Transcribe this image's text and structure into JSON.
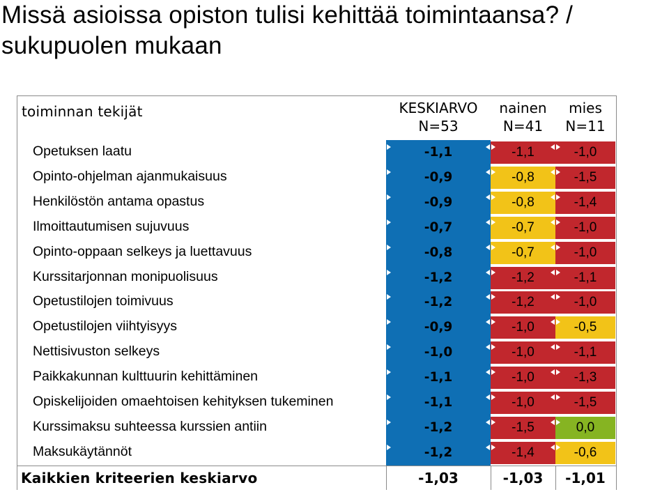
{
  "title": "Missä asioissa opiston tulisi kehittää toimintaansa? / sukupuolen mukaan",
  "header": {
    "label": "toiminnan tekijät",
    "col_k_line1": "KESKIARVO",
    "col_k_line2": "N=53",
    "col_n_line1": "nainen",
    "col_n_line2": "N=41",
    "col_m_line1": "mies",
    "col_m_line2": "N=11"
  },
  "colors": {
    "blue": "#0f6fb4",
    "red": "#c1272d",
    "yellow": "#f2c318",
    "green": "#86b422"
  },
  "rows": [
    {
      "label": "Opetuksen laatu",
      "k": "-1,1",
      "n": "-1,1",
      "m": "-1,0",
      "n_color": "red",
      "m_color": "red"
    },
    {
      "label": "Opinto-ohjelman ajanmukaisuus",
      "k": "-0,9",
      "n": "-0,8",
      "m": "-1,5",
      "n_color": "yellow",
      "m_color": "red"
    },
    {
      "label": "Henkilöstön antama opastus",
      "k": "-0,9",
      "n": "-0,8",
      "m": "-1,4",
      "n_color": "yellow",
      "m_color": "red"
    },
    {
      "label": "Ilmoittautumisen sujuvuus",
      "k": "-0,7",
      "n": "-0,7",
      "m": "-1,0",
      "n_color": "yellow",
      "m_color": "red"
    },
    {
      "label": "Opinto-oppaan selkeys ja luettavuus",
      "k": "-0,8",
      "n": "-0,7",
      "m": "-1,0",
      "n_color": "yellow",
      "m_color": "red"
    },
    {
      "label": "Kurssitarjonnan monipuolisuus",
      "k": "-1,2",
      "n": "-1,2",
      "m": "-1,1",
      "n_color": "red",
      "m_color": "red"
    },
    {
      "label": "Opetustilojen toimivuus",
      "k": "-1,2",
      "n": "-1,2",
      "m": "-1,0",
      "n_color": "red",
      "m_color": "red"
    },
    {
      "label": "Opetustilojen viihtyisyys",
      "k": "-0,9",
      "n": "-1,0",
      "m": "-0,5",
      "n_color": "red",
      "m_color": "yellow"
    },
    {
      "label": "Nettisivuston selkeys",
      "k": "-1,0",
      "n": "-1,0",
      "m": "-1,1",
      "n_color": "red",
      "m_color": "red"
    },
    {
      "label": "Paikkakunnan kulttuurin kehittäminen",
      "k": "-1,1",
      "n": "-1,0",
      "m": "-1,3",
      "n_color": "red",
      "m_color": "red"
    },
    {
      "label": "Opiskelijoiden omaehtoisen kehityksen tukeminen",
      "k": "-1,1",
      "n": "-1,0",
      "m": "-1,5",
      "n_color": "red",
      "m_color": "red"
    },
    {
      "label": "Kurssimaksu suhteessa kurssien antiin",
      "k": "-1,2",
      "n": "-1,5",
      "m": "0,0",
      "n_color": "red",
      "m_color": "green"
    },
    {
      "label": "Maksukäytännöt",
      "k": "-1,2",
      "n": "-1,4",
      "m": "-0,6",
      "n_color": "red",
      "m_color": "yellow"
    }
  ],
  "total": {
    "label": "Kaikkien kriteerien keskiarvo",
    "k": "-1,03",
    "n": "-1,03",
    "m": "-1,01"
  }
}
